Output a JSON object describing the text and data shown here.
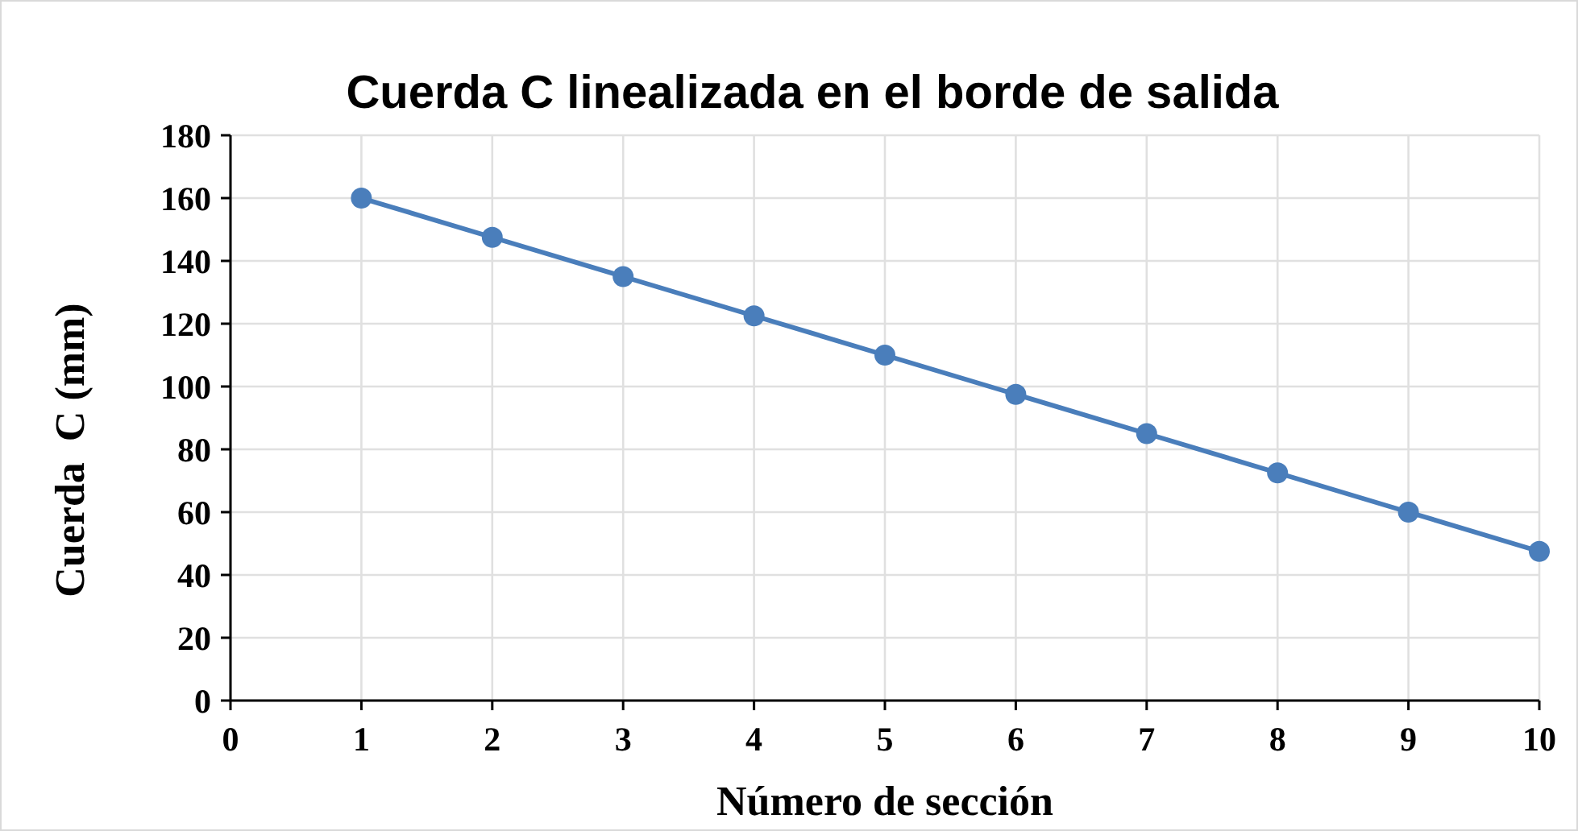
{
  "chart_data": {
    "type": "line",
    "title": "Cuerda C linealizada en el borde de salida",
    "xlabel": "Número de sección",
    "ylabel": "Cuerda  C (mm)",
    "x": [
      1,
      2,
      3,
      4,
      5,
      6,
      7,
      8,
      9,
      10
    ],
    "series": [
      {
        "color": "#4a7ebb",
        "values": [
          160,
          147.5,
          135,
          122.5,
          110,
          97.5,
          85,
          72.5,
          60,
          47.5
        ]
      }
    ],
    "xlim": [
      0,
      10
    ],
    "xticks": [
      0,
      1,
      2,
      3,
      4,
      5,
      6,
      7,
      8,
      9,
      10
    ],
    "ylim": [
      0,
      180
    ],
    "yticks": [
      0,
      20,
      40,
      60,
      80,
      100,
      120,
      140,
      160,
      180
    ],
    "grid": true,
    "marker": "circle",
    "line_style": "solid"
  }
}
